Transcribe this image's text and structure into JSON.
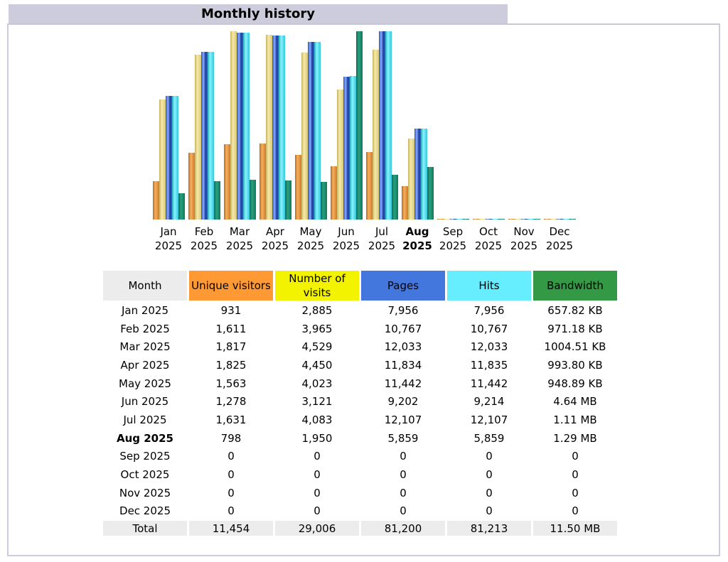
{
  "title": "Monthly history",
  "colors": {
    "unique": "#ff9933",
    "visits": "#f3f300",
    "pages": "#4477dd",
    "hits": "#66eeff",
    "bandwidth": "#2ea495",
    "header_bg": "#ccccdd"
  },
  "table": {
    "headers": [
      "Month",
      "Unique visitors",
      "Number of visits",
      "Pages",
      "Hits",
      "Bandwidth"
    ],
    "rows": [
      [
        "Jan 2025",
        "931",
        "2,885",
        "7,956",
        "7,956",
        "657.82 KB"
      ],
      [
        "Feb 2025",
        "1,611",
        "3,965",
        "10,767",
        "10,767",
        "971.18 KB"
      ],
      [
        "Mar 2025",
        "1,817",
        "4,529",
        "12,033",
        "12,033",
        "1004.51 KB"
      ],
      [
        "Apr 2025",
        "1,825",
        "4,450",
        "11,834",
        "11,835",
        "993.80 KB"
      ],
      [
        "May 2025",
        "1,563",
        "4,023",
        "11,442",
        "11,442",
        "948.89 KB"
      ],
      [
        "Jun 2025",
        "1,278",
        "3,121",
        "9,202",
        "9,214",
        "4.64 MB"
      ],
      [
        "Jul 2025",
        "1,631",
        "4,083",
        "12,107",
        "12,107",
        "1.11 MB"
      ],
      [
        "Aug 2025",
        "798",
        "1,950",
        "5,859",
        "5,859",
        "1.29 MB"
      ],
      [
        "Sep 2025",
        "0",
        "0",
        "0",
        "0",
        "0"
      ],
      [
        "Oct 2025",
        "0",
        "0",
        "0",
        "0",
        "0"
      ],
      [
        "Nov 2025",
        "0",
        "0",
        "0",
        "0",
        "0"
      ],
      [
        "Dec 2025",
        "0",
        "0",
        "0",
        "0",
        "0"
      ]
    ],
    "total": [
      "Total",
      "11,454",
      "29,006",
      "81,200",
      "81,213",
      "11.50 MB"
    ],
    "current_month": "Aug 2025"
  },
  "chart_data": {
    "type": "bar",
    "categories": [
      [
        "Jan",
        "2025"
      ],
      [
        "Feb",
        "2025"
      ],
      [
        "Mar",
        "2025"
      ],
      [
        "Apr",
        "2025"
      ],
      [
        "May",
        "2025"
      ],
      [
        "Jun",
        "2025"
      ],
      [
        "Jul",
        "2025"
      ],
      [
        "Aug",
        "2025"
      ],
      [
        "Sep",
        "2025"
      ],
      [
        "Oct",
        "2025"
      ],
      [
        "Nov",
        "2025"
      ],
      [
        "Dec",
        "2025"
      ]
    ],
    "current_index": 7,
    "series": [
      {
        "name": "Unique visitors",
        "color": "#e8953a",
        "values": [
          931,
          1611,
          1817,
          1825,
          1563,
          1278,
          1631,
          798,
          0,
          0,
          0,
          0
        ]
      },
      {
        "name": "Number of visits",
        "color": "#e8d98a",
        "values": [
          2885,
          3965,
          4529,
          4450,
          4023,
          3121,
          4083,
          1950,
          0,
          0,
          0,
          0
        ]
      },
      {
        "name": "Pages",
        "color": "#4477dd",
        "values": [
          7956,
          10767,
          12033,
          11834,
          11442,
          9202,
          12107,
          5859,
          0,
          0,
          0,
          0
        ]
      },
      {
        "name": "Hits",
        "color": "#44ccdd",
        "values": [
          7956,
          10767,
          12033,
          11835,
          11442,
          9214,
          12107,
          5859,
          0,
          0,
          0,
          0
        ]
      },
      {
        "name": "Bandwidth",
        "unit": "KB",
        "color": "#1a8a6a",
        "values": [
          657.82,
          971.18,
          1004.51,
          993.8,
          948.89,
          4751.36,
          1136.64,
          1320.96,
          0,
          0,
          0,
          0
        ]
      }
    ]
  }
}
